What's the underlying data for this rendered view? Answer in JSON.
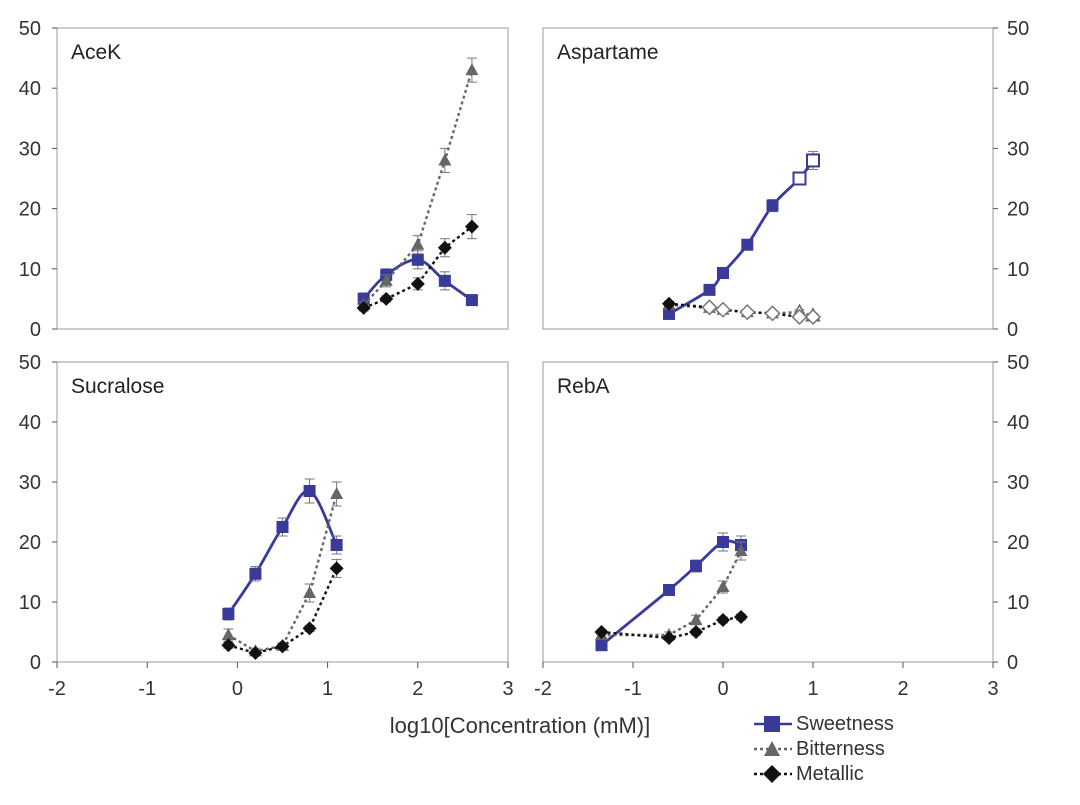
{
  "chart_data": {
    "type": "scatter",
    "xlabel": "log10[Concentration (mM)]",
    "ylim": [
      0,
      50
    ],
    "xlim": [
      -2,
      3
    ],
    "yticks": [
      "0",
      "10",
      "20",
      "30",
      "40",
      "50"
    ],
    "xticks": [
      "-2",
      "-1",
      "0",
      "1",
      "2",
      "3"
    ],
    "colors": {
      "sweetness": "#3a3a9a",
      "bitterness": "#666666",
      "metallic": "#111111"
    },
    "legend": [
      {
        "key": "sweetness",
        "label": "Sweetness",
        "marker": "square",
        "line": "solid"
      },
      {
        "key": "bitterness",
        "label": "Bitterness",
        "marker": "triangle",
        "line": "dotted"
      },
      {
        "key": "metallic",
        "label": "Metallic",
        "marker": "diamond",
        "line": "dotted"
      }
    ],
    "panels": [
      {
        "title": "AceK",
        "series": [
          {
            "key": "sweetness",
            "x": [
              1.4,
              1.65,
              2.0,
              2.3,
              2.6
            ],
            "y": [
              5,
              9,
              11.5,
              8,
              4.8
            ],
            "err": [
              1.0,
              1.0,
              1.5,
              1.5,
              0.5
            ],
            "fit": "curve"
          },
          {
            "key": "bitterness",
            "x": [
              1.4,
              1.65,
              2.0,
              2.3,
              2.6
            ],
            "y": [
              4,
              8,
              14,
              28,
              43
            ],
            "err": [
              0.5,
              1.0,
              1.5,
              2.0,
              2.0
            ]
          },
          {
            "key": "metallic",
            "x": [
              1.4,
              1.65,
              2.0,
              2.3,
              2.6
            ],
            "y": [
              3.5,
              5,
              7.5,
              13.5,
              17
            ],
            "err": [
              0.5,
              0.5,
              1.0,
              1.5,
              2.0
            ]
          }
        ]
      },
      {
        "title": "Aspartame",
        "series": [
          {
            "key": "sweetness",
            "x": [
              -0.6,
              -0.15,
              0.0,
              0.27,
              0.55,
              0.85,
              1.0
            ],
            "y": [
              2.5,
              6.5,
              9.3,
              14,
              20.5,
              25,
              28
            ],
            "err": [
              0.5,
              0.5,
              0.8,
              0.8,
              1.0,
              1.0,
              1.5
            ],
            "fit": "curve",
            "open_from": 5
          },
          {
            "key": "bitterness",
            "x": [
              -0.6,
              -0.15,
              0.0,
              0.27,
              0.55,
              0.85,
              1.0
            ],
            "y": [
              4,
              3.5,
              3.2,
              2.8,
              2.6,
              2.8,
              2.2
            ],
            "err": [
              0.4,
              0.4,
              0.4,
              0.4,
              0.4,
              0.4,
              0.4
            ],
            "open_from": 5
          },
          {
            "key": "metallic",
            "x": [
              -0.6,
              -0.15,
              0.0,
              0.27,
              0.55,
              0.85,
              1.0
            ],
            "y": [
              4.2,
              3.6,
              3.2,
              2.8,
              2.6,
              2.0,
              2.0
            ],
            "err": [
              0.4,
              0.4,
              0.4,
              0.4,
              0.4,
              0.4,
              0.4
            ],
            "open_from": 1
          }
        ]
      },
      {
        "title": "Sucralose",
        "series": [
          {
            "key": "sweetness",
            "x": [
              -0.1,
              0.2,
              0.5,
              0.8,
              1.1
            ],
            "y": [
              8,
              14.7,
              22.5,
              28.5,
              19.5
            ],
            "err": [
              1.0,
              1.2,
              1.5,
              2.0,
              1.5
            ],
            "fit": "curve3"
          },
          {
            "key": "bitterness",
            "x": [
              -0.1,
              0.2,
              0.5,
              0.8,
              1.1
            ],
            "y": [
              4.5,
              1.8,
              2.7,
              11.5,
              28
            ],
            "err": [
              1.0,
              0.5,
              0.5,
              1.5,
              2.0
            ]
          },
          {
            "key": "metallic",
            "x": [
              -0.1,
              0.2,
              0.5,
              0.8,
              1.1
            ],
            "y": [
              2.8,
              1.5,
              2.6,
              5.6,
              15.6
            ],
            "err": [
              0.5,
              0.5,
              0.5,
              0.5,
              1.5
            ]
          }
        ]
      },
      {
        "title": "RebA",
        "series": [
          {
            "key": "sweetness",
            "x": [
              -1.35,
              -0.6,
              -0.3,
              0.0,
              0.2
            ],
            "y": [
              2.8,
              12,
              16,
              20,
              19.5
            ],
            "err": [
              0.5,
              0.8,
              1.0,
              1.5,
              1.5
            ],
            "fit": "curve"
          },
          {
            "key": "bitterness",
            "x": [
              -1.35,
              -0.6,
              -0.3,
              0.0,
              0.2
            ],
            "y": [
              4.5,
              4.5,
              7,
              12.5,
              18.5
            ],
            "err": [
              0.5,
              0.5,
              0.8,
              1.0,
              1.5
            ]
          },
          {
            "key": "metallic",
            "x": [
              -1.35,
              -0.6,
              -0.3,
              0.0,
              0.2
            ],
            "y": [
              5,
              4,
              5,
              7,
              7.5
            ],
            "err": [
              0.4,
              0.4,
              0.5,
              0.5,
              0.5
            ]
          }
        ]
      }
    ]
  }
}
